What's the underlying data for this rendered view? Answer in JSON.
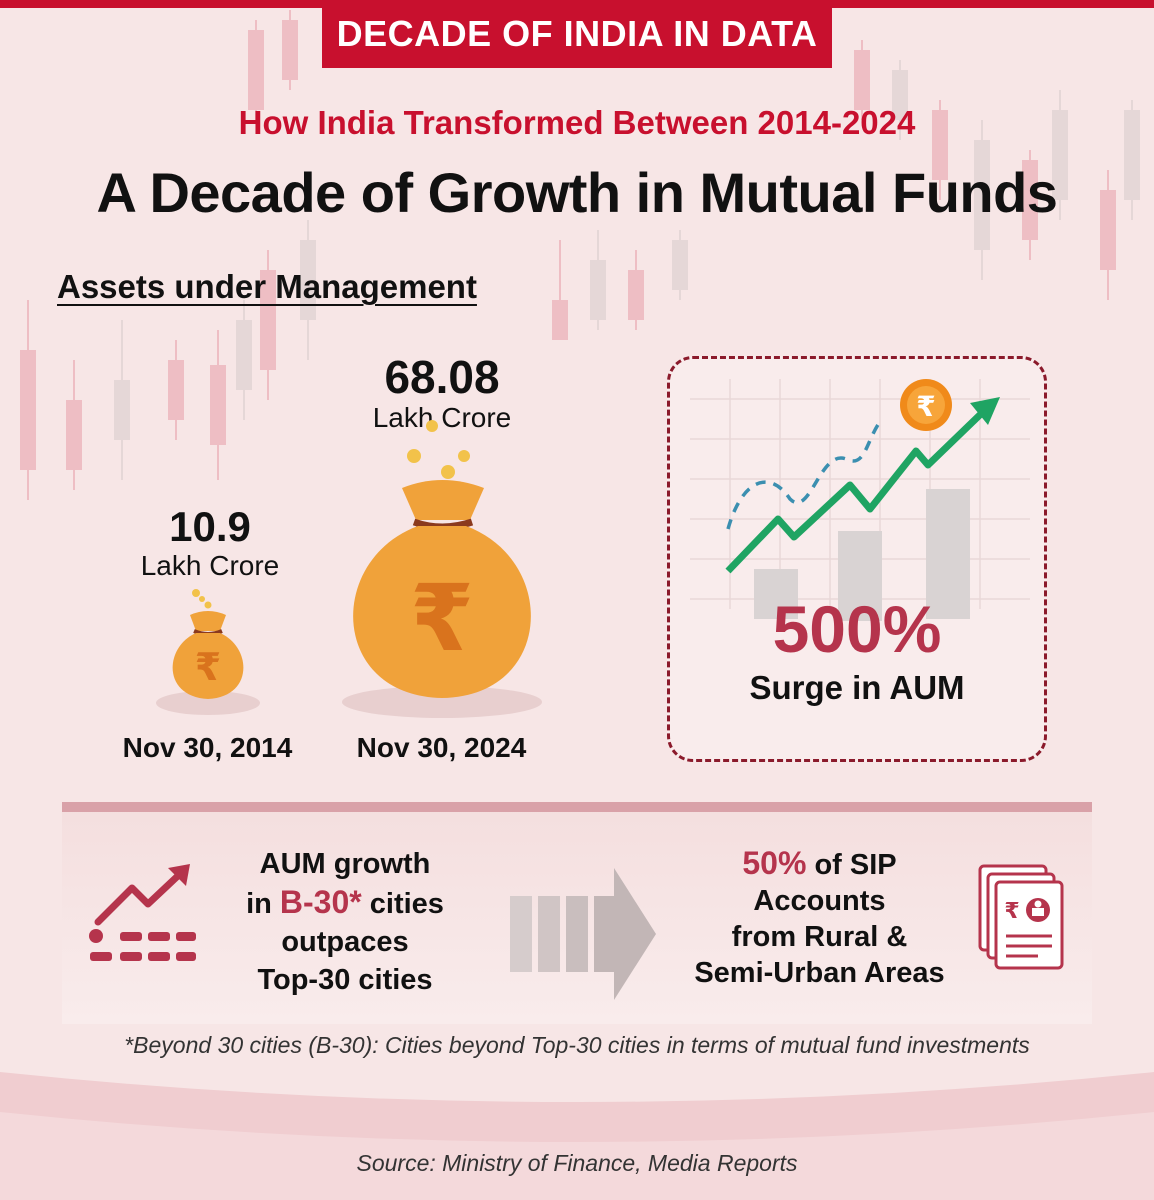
{
  "header": {
    "banner": "DECADE OF INDIA IN DATA",
    "subtitle": "How India Transformed Between 2014-2024",
    "title": "A Decade of Growth in Mutual Funds"
  },
  "aum": {
    "section_title": "Assets under Management",
    "items": [
      {
        "value": "10.9",
        "unit": "Lakh Crore",
        "date": "Nov 30, 2014"
      },
      {
        "value": "68.08",
        "unit": "Lakh Crore",
        "date": "Nov 30, 2024"
      }
    ],
    "surge": {
      "percent": "500%",
      "label": "Surge in AUM"
    }
  },
  "highlights": {
    "b30": {
      "line1": "AUM growth",
      "pre": "in ",
      "highlight": "B-30*",
      "post": " cities",
      "line3": "outpaces",
      "line4": "Top-30 cities"
    },
    "sip": {
      "highlight": "50%",
      "post": " of SIP",
      "line2": "Accounts",
      "line3": "from Rural &",
      "line4": "Semi-Urban Areas"
    }
  },
  "footnote": "*Beyond 30 cities (B-30): Cities beyond Top-30 cities in terms of mutual fund investments",
  "source": "Source: Ministry of Finance, Media Reports",
  "icons": {
    "growth": "trend-up-icon",
    "arrow": "arrow-right-icon",
    "documents": "rupee-documents-icon",
    "coin": "rupee-coin-icon",
    "bag": "money-bag-icon"
  },
  "colors": {
    "brand_red": "#c8102e",
    "accent": "#b5344c",
    "bag_orange": "#f0a23a",
    "trend_green": "#1fa463"
  }
}
